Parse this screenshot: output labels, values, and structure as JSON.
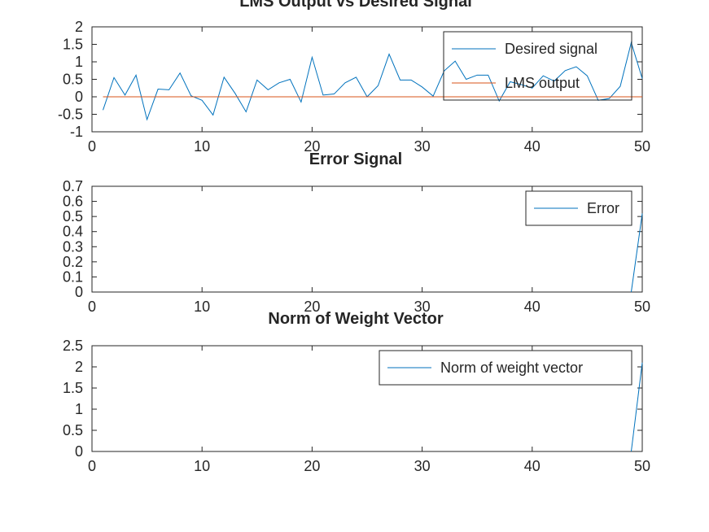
{
  "chart_data": [
    {
      "type": "line",
      "title": "LMS Output vs Desired Signal",
      "xlabel": "",
      "ylabel": "",
      "xlim": [
        0,
        50
      ],
      "ylim": [
        -1,
        2
      ],
      "xticks": [
        0,
        10,
        20,
        30,
        40,
        50
      ],
      "yticks": [
        -1,
        -0.5,
        0,
        0.5,
        1,
        1.5,
        2
      ],
      "ytick_labels": [
        "-1",
        "-0.5",
        "0",
        "0.5",
        "1",
        "1.5",
        "2"
      ],
      "legend_position": "top-right",
      "grid": false,
      "series": [
        {
          "name": "Desired signal",
          "color": "#0072bd",
          "x": [
            1,
            2,
            3,
            4,
            5,
            6,
            7,
            8,
            9,
            10,
            11,
            12,
            13,
            14,
            15,
            16,
            17,
            18,
            19,
            20,
            21,
            22,
            23,
            24,
            25,
            26,
            27,
            28,
            29,
            30,
            31,
            32,
            33,
            34,
            35,
            36,
            37,
            38,
            39,
            40,
            41,
            42,
            43,
            44,
            45,
            46,
            47,
            48,
            49,
            50
          ],
          "y": [
            -0.38,
            0.55,
            0.05,
            0.62,
            -0.65,
            0.22,
            0.2,
            0.68,
            0.03,
            -0.1,
            -0.52,
            0.56,
            0.1,
            -0.43,
            0.48,
            0.2,
            0.4,
            0.5,
            -0.15,
            1.13,
            0.05,
            0.08,
            0.4,
            0.56,
            0.0,
            0.32,
            1.22,
            0.48,
            0.48,
            0.28,
            0.02,
            0.74,
            1.02,
            0.5,
            0.62,
            0.62,
            -0.12,
            0.43,
            0.35,
            0.25,
            0.6,
            0.45,
            0.75,
            0.86,
            0.6,
            -0.1,
            -0.05,
            0.3,
            1.55,
            0.52
          ]
        },
        {
          "name": "LMS output",
          "color": "#d95319",
          "x": [
            1,
            2,
            3,
            4,
            5,
            6,
            7,
            8,
            9,
            10,
            11,
            12,
            13,
            14,
            15,
            16,
            17,
            18,
            19,
            20,
            21,
            22,
            23,
            24,
            25,
            26,
            27,
            28,
            29,
            30,
            31,
            32,
            33,
            34,
            35,
            36,
            37,
            38,
            39,
            40,
            41,
            42,
            43,
            44,
            45,
            46,
            47,
            48,
            49,
            50
          ],
          "y": [
            0,
            0,
            0,
            0,
            0,
            0,
            0,
            0,
            0,
            0,
            0,
            0,
            0,
            0,
            0,
            0,
            0,
            0,
            0,
            0,
            0,
            0,
            0,
            0,
            0,
            0,
            0,
            0,
            0,
            0,
            0,
            0,
            0,
            0,
            0,
            0,
            0,
            0,
            0,
            0,
            0,
            0,
            0,
            0,
            0,
            0,
            0,
            0,
            0,
            0
          ]
        }
      ]
    },
    {
      "type": "line",
      "title": "Error Signal",
      "xlabel": "",
      "ylabel": "",
      "xlim": [
        0,
        50
      ],
      "ylim": [
        0,
        0.7
      ],
      "xticks": [
        0,
        10,
        20,
        30,
        40,
        50
      ],
      "yticks": [
        0,
        0.1,
        0.2,
        0.3,
        0.4,
        0.5,
        0.6,
        0.7
      ],
      "ytick_labels": [
        "0",
        "0.1",
        "0.2",
        "0.3",
        "0.4",
        "0.5",
        "0.6",
        "0.7"
      ],
      "legend_position": "top-right",
      "grid": false,
      "series": [
        {
          "name": "Error",
          "color": "#0072bd",
          "x": [
            49,
            50
          ],
          "y": [
            0,
            0.52
          ]
        }
      ]
    },
    {
      "type": "line",
      "title": "Norm of Weight Vector",
      "xlabel": "",
      "ylabel": "",
      "xlim": [
        0,
        50
      ],
      "ylim": [
        0,
        2.5
      ],
      "xticks": [
        0,
        10,
        20,
        30,
        40,
        50
      ],
      "yticks": [
        0,
        0.5,
        1,
        1.5,
        2,
        2.5
      ],
      "ytick_labels": [
        "0",
        "0.5",
        "1",
        "1.5",
        "2",
        "2.5"
      ],
      "legend_position": "top-right",
      "grid": false,
      "series": [
        {
          "name": "Norm of weight vector",
          "color": "#0072bd",
          "x": [
            49,
            50
          ],
          "y": [
            0,
            2.1
          ]
        }
      ]
    }
  ]
}
